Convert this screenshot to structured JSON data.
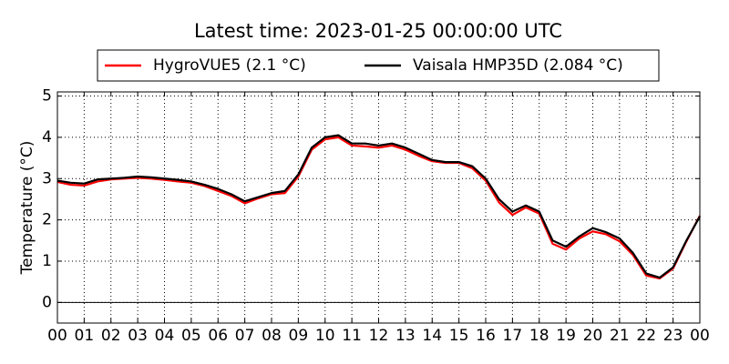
{
  "chart_data": {
    "type": "line",
    "title": "Latest time: 2023-01-25 00:00:00 UTC",
    "y_label": "Temperature (°C)",
    "x": [
      0,
      0.5,
      1,
      1.5,
      2,
      2.5,
      3,
      3.5,
      4,
      4.5,
      5,
      5.5,
      6,
      6.5,
      7,
      7.5,
      8,
      8.5,
      9,
      9.5,
      10,
      10.5,
      11,
      11.5,
      12,
      12.5,
      13,
      13.5,
      14,
      14.5,
      15,
      15.5,
      16,
      16.5,
      17,
      17.5,
      18,
      18.5,
      19,
      19.5,
      20,
      20.5,
      21,
      21.5,
      22,
      22.5,
      23,
      23.5,
      24
    ],
    "series": [
      {
        "name": "HygroVUE5 (2.1 °C)",
        "color": "#ff0000",
        "values": [
          2.92,
          2.85,
          2.83,
          2.93,
          2.98,
          3.0,
          3.02,
          3.0,
          2.97,
          2.93,
          2.9,
          2.82,
          2.7,
          2.58,
          2.4,
          2.52,
          2.62,
          2.65,
          3.05,
          3.7,
          3.95,
          4.0,
          3.8,
          3.78,
          3.75,
          3.8,
          3.7,
          3.55,
          3.42,
          3.38,
          3.38,
          3.25,
          2.95,
          2.42,
          2.12,
          2.3,
          2.15,
          1.42,
          1.28,
          1.55,
          1.72,
          1.65,
          1.48,
          1.15,
          0.65,
          0.58,
          0.82,
          1.48,
          2.1
        ]
      },
      {
        "name": "Vaisala HMP35D (2.084 °C)",
        "color": "#000000",
        "values": [
          2.95,
          2.9,
          2.88,
          2.98,
          3.0,
          3.02,
          3.05,
          3.03,
          3.0,
          2.97,
          2.93,
          2.85,
          2.75,
          2.62,
          2.45,
          2.55,
          2.65,
          2.7,
          3.1,
          3.75,
          4.0,
          4.05,
          3.85,
          3.85,
          3.8,
          3.85,
          3.75,
          3.6,
          3.45,
          3.4,
          3.4,
          3.3,
          3.0,
          2.5,
          2.2,
          2.35,
          2.2,
          1.5,
          1.35,
          1.6,
          1.8,
          1.7,
          1.55,
          1.2,
          0.7,
          0.6,
          0.85,
          1.5,
          2.084
        ]
      }
    ],
    "xlim": [
      0,
      24
    ],
    "xticks": [
      {
        "value": 0,
        "label": "00"
      },
      {
        "value": 1,
        "label": "01"
      },
      {
        "value": 2,
        "label": "02"
      },
      {
        "value": 3,
        "label": "03"
      },
      {
        "value": 4,
        "label": "04"
      },
      {
        "value": 5,
        "label": "05"
      },
      {
        "value": 6,
        "label": "06"
      },
      {
        "value": 7,
        "label": "07"
      },
      {
        "value": 8,
        "label": "08"
      },
      {
        "value": 9,
        "label": "09"
      },
      {
        "value": 10,
        "label": "10"
      },
      {
        "value": 11,
        "label": "11"
      },
      {
        "value": 12,
        "label": "12"
      },
      {
        "value": 13,
        "label": "13"
      },
      {
        "value": 14,
        "label": "14"
      },
      {
        "value": 15,
        "label": "15"
      },
      {
        "value": 16,
        "label": "16"
      },
      {
        "value": 17,
        "label": "17"
      },
      {
        "value": 18,
        "label": "18"
      },
      {
        "value": 19,
        "label": "19"
      },
      {
        "value": 20,
        "label": "20"
      },
      {
        "value": 21,
        "label": "21"
      },
      {
        "value": 22,
        "label": "22"
      },
      {
        "value": 23,
        "label": "23"
      },
      {
        "value": 24,
        "label": "00"
      }
    ],
    "ylim": [
      -0.5,
      5.1
    ],
    "yticks": [
      0,
      1,
      2,
      3,
      4,
      5
    ],
    "grid": true,
    "zero_line": true,
    "legend": "top"
  }
}
